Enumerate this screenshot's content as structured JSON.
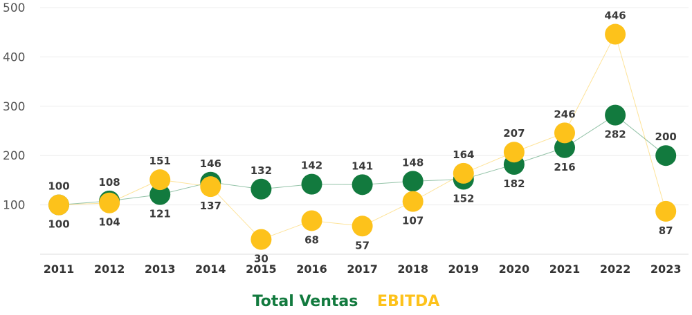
{
  "chart_data": {
    "type": "line",
    "categories": [
      "2011",
      "2012",
      "2013",
      "2014",
      "2015",
      "2016",
      "2017",
      "2018",
      "2019",
      "2020",
      "2021",
      "2022",
      "2023"
    ],
    "series": [
      {
        "name": "Total Ventas",
        "color": "#127a3e",
        "values": [
          100,
          108,
          121,
          146,
          132,
          142,
          141,
          148,
          152,
          182,
          216,
          282,
          200
        ]
      },
      {
        "name": "EBITDA",
        "color": "#fdc21b",
        "values": [
          100,
          104,
          151,
          137,
          30,
          68,
          57,
          107,
          164,
          207,
          246,
          446,
          87
        ]
      }
    ],
    "yticks": [
      "100",
      "200",
      "300",
      "400",
      "500"
    ],
    "ylim": [
      0,
      500
    ],
    "grid": true,
    "legend_position": "bottom-center"
  }
}
